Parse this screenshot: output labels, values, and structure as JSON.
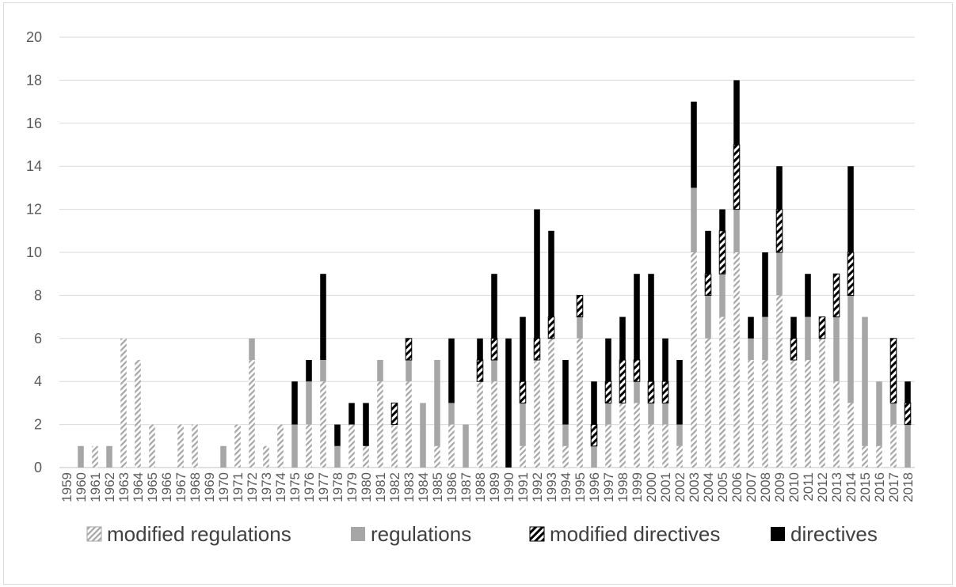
{
  "chart_data": {
    "type": "bar",
    "stacked": true,
    "title": "",
    "xlabel": "",
    "ylabel": "",
    "ylim": [
      0,
      20
    ],
    "yticks": [
      0,
      2,
      4,
      6,
      8,
      10,
      12,
      14,
      16,
      18,
      20
    ],
    "grid": true,
    "legend_position": "bottom",
    "categories": [
      "1959",
      "1960",
      "1961",
      "1962",
      "1963",
      "1964",
      "1965",
      "1966",
      "1967",
      "1968",
      "1969",
      "1970",
      "1971",
      "1972",
      "1973",
      "1974",
      "1975",
      "1976",
      "1977",
      "1978",
      "1979",
      "1980",
      "1981",
      "1982",
      "1983",
      "1984",
      "1985",
      "1986",
      "1987",
      "1988",
      "1989",
      "1990",
      "1991",
      "1992",
      "1993",
      "1994",
      "1995",
      "1996",
      "1997",
      "1998",
      "1999",
      "2000",
      "2001",
      "2002",
      "2003",
      "2004",
      "2005",
      "2006",
      "2007",
      "2008",
      "2009",
      "2010",
      "2011",
      "2012",
      "2013",
      "2014",
      "2015",
      "2016",
      "2017",
      "2018"
    ],
    "series": [
      {
        "name": "modified regulations",
        "color": "#a6a6a6",
        "pattern": "diagonal-light",
        "values": [
          0,
          0,
          1,
          0,
          6,
          5,
          2,
          0,
          2,
          2,
          0,
          0,
          2,
          5,
          1,
          2,
          0,
          2,
          4,
          0,
          2,
          1,
          4,
          2,
          4,
          0,
          1,
          2,
          0,
          4,
          4,
          0,
          1,
          5,
          6,
          1,
          6,
          0,
          2,
          3,
          3,
          2,
          2,
          1,
          10,
          6,
          7,
          10,
          5,
          5,
          8,
          5,
          5,
          6,
          4,
          3,
          1,
          1,
          2,
          0
        ]
      },
      {
        "name": "regulations",
        "color": "#a6a6a6",
        "pattern": "solid",
        "values": [
          0,
          1,
          0,
          1,
          0,
          0,
          0,
          0,
          0,
          0,
          0,
          1,
          0,
          1,
          0,
          0,
          2,
          2,
          1,
          1,
          0,
          0,
          1,
          0,
          1,
          3,
          4,
          1,
          2,
          0,
          1,
          0,
          2,
          0,
          0,
          1,
          1,
          1,
          1,
          0,
          1,
          1,
          1,
          1,
          3,
          2,
          2,
          2,
          1,
          2,
          2,
          0,
          2,
          0,
          3,
          5,
          6,
          3,
          1,
          2
        ]
      },
      {
        "name": "modified directives",
        "color": "#000000",
        "pattern": "diagonal-bold",
        "values": [
          0,
          0,
          0,
          0,
          0,
          0,
          0,
          0,
          0,
          0,
          0,
          0,
          0,
          0,
          0,
          0,
          0,
          0,
          0,
          0,
          0,
          0,
          0,
          1,
          1,
          0,
          0,
          0,
          0,
          1,
          1,
          0,
          1,
          1,
          1,
          0,
          1,
          1,
          1,
          2,
          1,
          1,
          1,
          0,
          0,
          1,
          2,
          3,
          0,
          0,
          2,
          1,
          0,
          1,
          2,
          2,
          0,
          0,
          3,
          1
        ]
      },
      {
        "name": "directives",
        "color": "#000000",
        "pattern": "solid",
        "values": [
          0,
          0,
          0,
          0,
          0,
          0,
          0,
          0,
          0,
          0,
          0,
          0,
          0,
          0,
          0,
          0,
          2,
          1,
          4,
          1,
          1,
          2,
          0,
          0,
          0,
          0,
          0,
          3,
          0,
          1,
          3,
          6,
          3,
          6,
          4,
          3,
          0,
          2,
          2,
          2,
          4,
          5,
          2,
          3,
          4,
          2,
          1,
          3,
          1,
          3,
          2,
          1,
          2,
          0,
          0,
          4,
          0,
          0,
          0,
          1
        ]
      }
    ]
  }
}
